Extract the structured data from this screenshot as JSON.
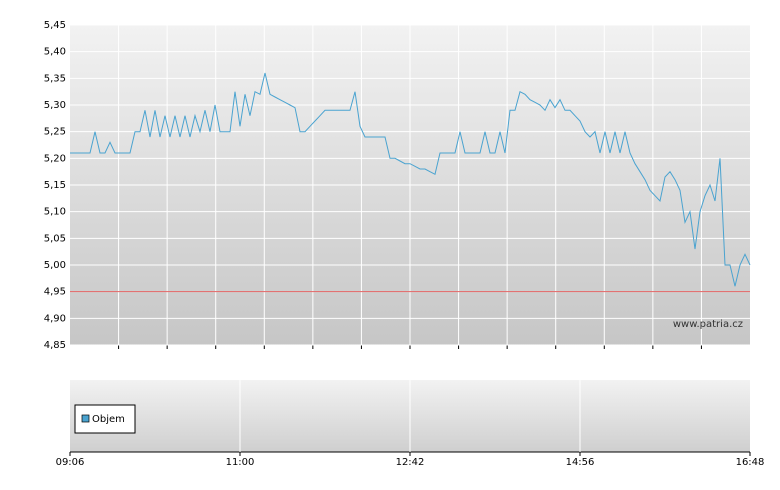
{
  "chart_data": {
    "type": "line",
    "series": [
      {
        "name": "Objem",
        "color": "#4aa3d0",
        "values": [
          5.21,
          5.21,
          5.21,
          5.21,
          5.21,
          5.25,
          5.21,
          5.21,
          5.23,
          5.21,
          5.21,
          5.21,
          5.21,
          5.25,
          5.25,
          5.29,
          5.24,
          5.29,
          5.24,
          5.28,
          5.24,
          5.28,
          5.24,
          5.28,
          5.24,
          5.28,
          5.25,
          5.29,
          5.25,
          5.3,
          5.25,
          5.25,
          5.25,
          5.325,
          5.26,
          5.32,
          5.28,
          5.325,
          5.32,
          5.36,
          5.32,
          5.315,
          5.31,
          5.305,
          5.3,
          5.295,
          5.25,
          5.25,
          5.26,
          5.27,
          5.28,
          5.29,
          5.29,
          5.29,
          5.29,
          5.29,
          5.29,
          5.325,
          5.26,
          5.24,
          5.24,
          5.24,
          5.24,
          5.24,
          5.2,
          5.2,
          5.195,
          5.19,
          5.19,
          5.185,
          5.18,
          5.18,
          5.175,
          5.17,
          5.21,
          5.21,
          5.21,
          5.21,
          5.25,
          5.21,
          5.21,
          5.21,
          5.21,
          5.25,
          5.21,
          5.21,
          5.25,
          5.21,
          5.29,
          5.29,
          5.325,
          5.32,
          5.31,
          5.305,
          5.3,
          5.29,
          5.31,
          5.295,
          5.31,
          5.29,
          5.29,
          5.28,
          5.27,
          5.25,
          5.24,
          5.25,
          5.21,
          5.25,
          5.21,
          5.25,
          5.21,
          5.25,
          5.21,
          5.19,
          5.175,
          5.16,
          5.14,
          5.13,
          5.12,
          5.165,
          5.175,
          5.16,
          5.14,
          5.08,
          5.1,
          5.03,
          5.1,
          5.13,
          5.15,
          5.12,
          5.2,
          5.0,
          5.0,
          4.96,
          5.0,
          5.02,
          5.0
        ]
      }
    ],
    "xticks": [
      "09:06",
      "11:00",
      "12:42",
      "14:56",
      "16:48"
    ],
    "ylim": [
      4.85,
      5.45
    ],
    "yticks": [
      {
        "value": 4.85,
        "label": "4,85"
      },
      {
        "value": 4.9,
        "label": "4,90"
      },
      {
        "value": 4.95,
        "label": "4,95"
      },
      {
        "value": 5.0,
        "label": "5,00"
      },
      {
        "value": 5.05,
        "label": "5,05"
      },
      {
        "value": 5.1,
        "label": "5,10"
      },
      {
        "value": 5.15,
        "label": "5,15"
      },
      {
        "value": 5.2,
        "label": "5,20"
      },
      {
        "value": 5.25,
        "label": "5,25"
      },
      {
        "value": 5.3,
        "label": "5,30"
      },
      {
        "value": 5.35,
        "label": "5,35"
      },
      {
        "value": 5.4,
        "label": "5,40"
      },
      {
        "value": 5.45,
        "label": "5,45"
      }
    ],
    "grid": true,
    "reference_line": {
      "value": 4.95,
      "color": "#e06060"
    },
    "watermark": "www.patria.cz"
  }
}
